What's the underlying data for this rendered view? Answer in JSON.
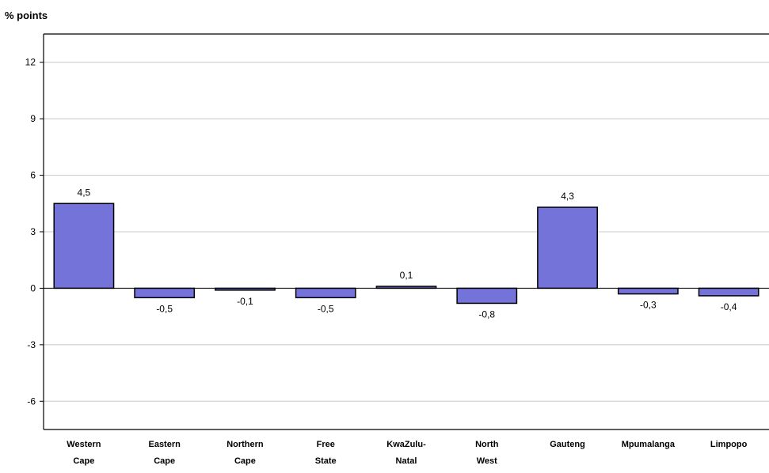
{
  "chart_data": {
    "type": "bar",
    "unit_label": "% points",
    "title": "",
    "xlabel": "",
    "ylabel": "% points",
    "categories": [
      [
        "Western",
        "Cape"
      ],
      [
        "Eastern",
        "Cape"
      ],
      [
        "Northern",
        "Cape"
      ],
      [
        "Free",
        "State"
      ],
      [
        "KwaZulu-",
        "Natal"
      ],
      [
        "North",
        "West"
      ],
      [
        "Gauteng"
      ],
      [
        "Mpumalanga"
      ],
      [
        "Limpopo"
      ]
    ],
    "values": [
      4.5,
      -0.5,
      -0.1,
      -0.5,
      0.1,
      -0.8,
      4.3,
      -0.3,
      -0.4
    ],
    "value_labels": [
      "4,5",
      "-0,5",
      "-0,1",
      "-0,5",
      "0,1",
      "-0,8",
      "4,3",
      "-0,3",
      "-0,4"
    ],
    "yticks": [
      12,
      9,
      6,
      3,
      0,
      -3,
      -6
    ],
    "ytick_labels": [
      "12",
      "9",
      "6",
      "3",
      "0",
      "-3",
      "-6"
    ],
    "ylim": [
      -7.5,
      13.5
    ],
    "grid": true,
    "colors": {
      "bar": "#7373d9",
      "bar_stroke": "#000000",
      "grid": "#c8c8c8",
      "axis": "#000000"
    }
  }
}
